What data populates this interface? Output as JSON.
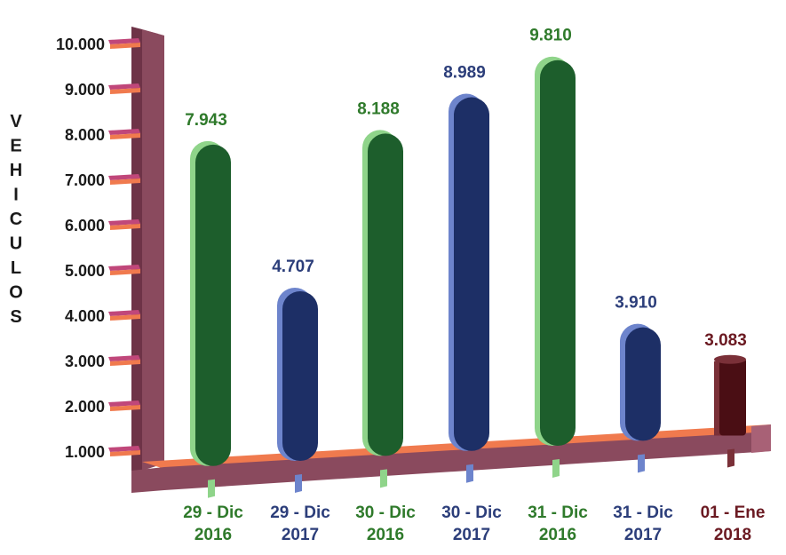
{
  "chart_data": {
    "type": "bar",
    "ylabel": "VEHICULOS",
    "ylim": [
      0,
      10000
    ],
    "y_ticks": [
      "1.000",
      "2.000",
      "3.000",
      "4.000",
      "5.000",
      "6.000",
      "7.000",
      "8.000",
      "9.000",
      "10.000"
    ],
    "categories": [
      {
        "line1": "29 - Dic",
        "line2": "2016",
        "value": 7943,
        "label": "7.943",
        "color": "green"
      },
      {
        "line1": "29 - Dic",
        "line2": "2017",
        "value": 4707,
        "label": "4.707",
        "color": "blue"
      },
      {
        "line1": "30 - Dic",
        "line2": "2016",
        "value": 8188,
        "label": "8.188",
        "color": "green"
      },
      {
        "line1": "30 - Dic",
        "line2": "2017",
        "value": 8989,
        "label": "8.989",
        "color": "blue"
      },
      {
        "line1": "31 - Dic",
        "line2": "2016",
        "value": 9810,
        "label": "9.810",
        "color": "green"
      },
      {
        "line1": "31 - Dic",
        "line2": "2017",
        "value": 3910,
        "label": "3.910",
        "color": "blue"
      },
      {
        "line1": "01 - Ene",
        "line2": "2018",
        "value": 3083,
        "label": "3.083",
        "color": "maroon"
      }
    ],
    "grid": false,
    "legend": "none"
  },
  "colors": {
    "green": {
      "dark": "#1d5e2c",
      "light": "#8fd48a",
      "text": "#2f7a2b"
    },
    "blue": {
      "dark": "#1d2f66",
      "light": "#6d84cc",
      "text": "#2c3e7a"
    },
    "maroon": {
      "dark": "#4a0e14",
      "light": "#7a3038",
      "text": "#6b1a22"
    },
    "axis_face": "#8a4a5e",
    "axis_top": "#b0788b",
    "axis_edge": "#5e2b3b",
    "floor_stripe": "#f07a4e",
    "tick_pink": "#c0477a",
    "tick_orange": "#f07a4e"
  }
}
